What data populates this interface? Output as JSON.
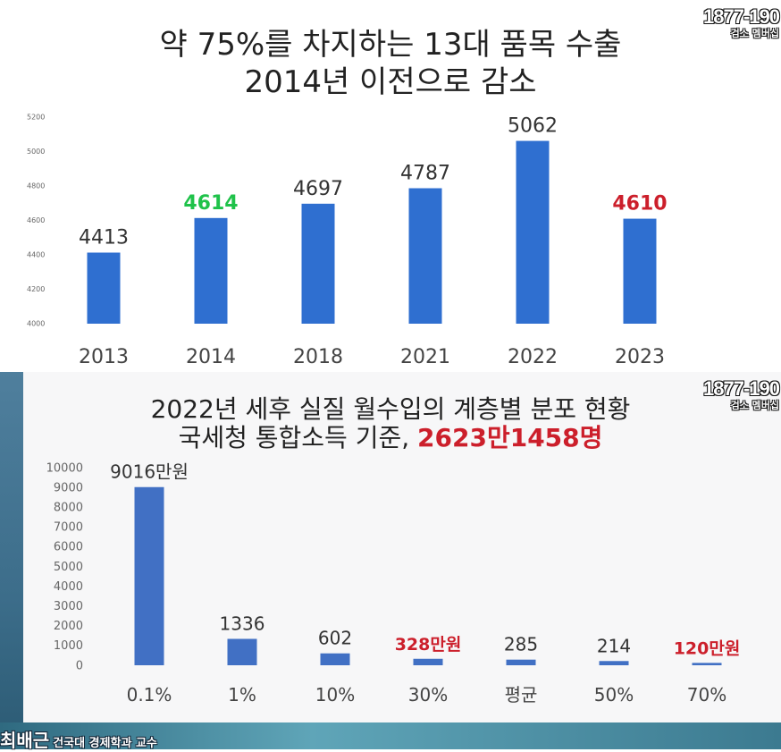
{
  "chart1": {
    "title_line1": "약 75%를 차지하는 13대 품목 수출",
    "title_line2": "2014년 이전으로 감소"
  },
  "chart2": {
    "title_line1": "2022년 세후 실질 월수입의 계층별 분포 현황",
    "title_line2_prefix": "국세청 통합소득 기준, ",
    "title_line2_highlight": "2623만1458명"
  },
  "watermark": {
    "number": "1877-190",
    "subtitle": "검소 멤버십"
  },
  "caption": {
    "name": "최배근",
    "role": "건국대 경제학과 교수"
  },
  "colors": {
    "bar": "#2f6fd0",
    "bar2": "#4170c4",
    "green": "#1fc24a",
    "red": "#cc1f2b",
    "text": "#333333"
  },
  "chart_data": [
    {
      "type": "bar",
      "categories": [
        "2013",
        "2014",
        "2018",
        "2021",
        "2022",
        "2023"
      ],
      "values": [
        4413,
        4614,
        4697,
        4787,
        5062,
        4610
      ],
      "data_labels": [
        "4413",
        "4614",
        "4697",
        "4787",
        "5062",
        "4610"
      ],
      "label_colors": [
        "#333333",
        "#1fc24a",
        "#333333",
        "#333333",
        "#333333",
        "#cc1f2b"
      ],
      "ylim": [
        4000,
        5200
      ],
      "yticks": [
        "4000",
        "4200",
        "4400",
        "4600",
        "4800",
        "5000",
        "5200"
      ],
      "title": "약 75%를 차지하는 13대 품목 수출 2014년 이전으로 감소",
      "grid": false
    },
    {
      "type": "bar",
      "categories": [
        "0.1%",
        "1%",
        "10%",
        "30%",
        "평균",
        "50%",
        "70%"
      ],
      "values": [
        9016,
        1336,
        602,
        328,
        285,
        214,
        120
      ],
      "data_labels": [
        "9016만원",
        "1336",
        "602",
        "328만원",
        "285",
        "214",
        "120만원"
      ],
      "label_colors": [
        "#333333",
        "#333333",
        "#333333",
        "#cc1f2b",
        "#333333",
        "#333333",
        "#cc1f2b"
      ],
      "ylim": [
        0,
        10000
      ],
      "yticks": [
        "0",
        "1000",
        "2000",
        "3000",
        "4000",
        "5000",
        "6000",
        "7000",
        "8000",
        "9000",
        "10000"
      ],
      "title": "2022년 세후 실질 월수입의 계층별 분포 현황 국세청 통합소득 기준, 2623만1458명",
      "grid": false
    }
  ]
}
